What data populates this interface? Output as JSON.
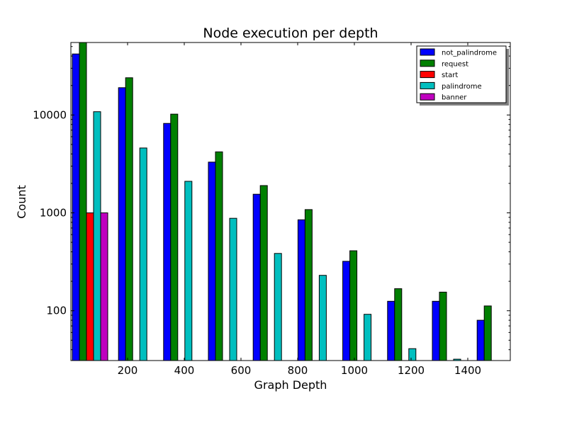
{
  "chart_data": {
    "type": "bar",
    "title": "Node execution per depth",
    "xlabel": "Graph Depth",
    "ylabel": "Count",
    "yscale": "log",
    "xlim": [
      0,
      1550
    ],
    "ylim": [
      31,
      55000
    ],
    "xticks": [
      "200",
      "400",
      "600",
      "800",
      "1000",
      "1200",
      "1400"
    ],
    "xtick_values": [
      200,
      400,
      600,
      800,
      1000,
      1200,
      1400
    ],
    "yticks": [
      "100",
      "1000",
      "10000"
    ],
    "ytick_values": [
      100,
      1000,
      10000
    ],
    "legend_position": "top-right",
    "grid": false,
    "series": [
      {
        "name": "not_palindrome",
        "color": "#0000ff",
        "points": [
          {
            "x": 5,
            "y": 42000
          },
          {
            "x": 168,
            "y": 19000
          },
          {
            "x": 327,
            "y": 8200
          },
          {
            "x": 485,
            "y": 3300
          },
          {
            "x": 643,
            "y": 1550
          },
          {
            "x": 801,
            "y": 850
          },
          {
            "x": 959,
            "y": 320
          },
          {
            "x": 1117,
            "y": 125
          },
          {
            "x": 1275,
            "y": 125
          },
          {
            "x": 1433,
            "y": 80
          }
        ]
      },
      {
        "name": "request",
        "color": "#008000",
        "points": [
          {
            "x": 30,
            "y": 55000
          },
          {
            "x": 193,
            "y": 24000
          },
          {
            "x": 352,
            "y": 10200
          },
          {
            "x": 510,
            "y": 4200
          },
          {
            "x": 668,
            "y": 1900
          },
          {
            "x": 826,
            "y": 1080
          },
          {
            "x": 984,
            "y": 410
          },
          {
            "x": 1142,
            "y": 168
          },
          {
            "x": 1300,
            "y": 155
          },
          {
            "x": 1458,
            "y": 112
          }
        ]
      },
      {
        "name": "start",
        "color": "#ff0000",
        "points": [
          {
            "x": 55,
            "y": 1000
          }
        ]
      },
      {
        "name": "palindrome",
        "color": "#00bfbf",
        "points": [
          {
            "x": 80,
            "y": 10800
          },
          {
            "x": 243,
            "y": 4600
          },
          {
            "x": 402,
            "y": 2100
          },
          {
            "x": 560,
            "y": 880
          },
          {
            "x": 718,
            "y": 385
          },
          {
            "x": 876,
            "y": 230
          },
          {
            "x": 1034,
            "y": 92
          },
          {
            "x": 1192,
            "y": 41
          },
          {
            "x": 1350,
            "y": 32
          }
        ]
      },
      {
        "name": "banner",
        "color": "#bf00bf",
        "points": [
          {
            "x": 105,
            "y": 1000
          }
        ]
      }
    ]
  }
}
